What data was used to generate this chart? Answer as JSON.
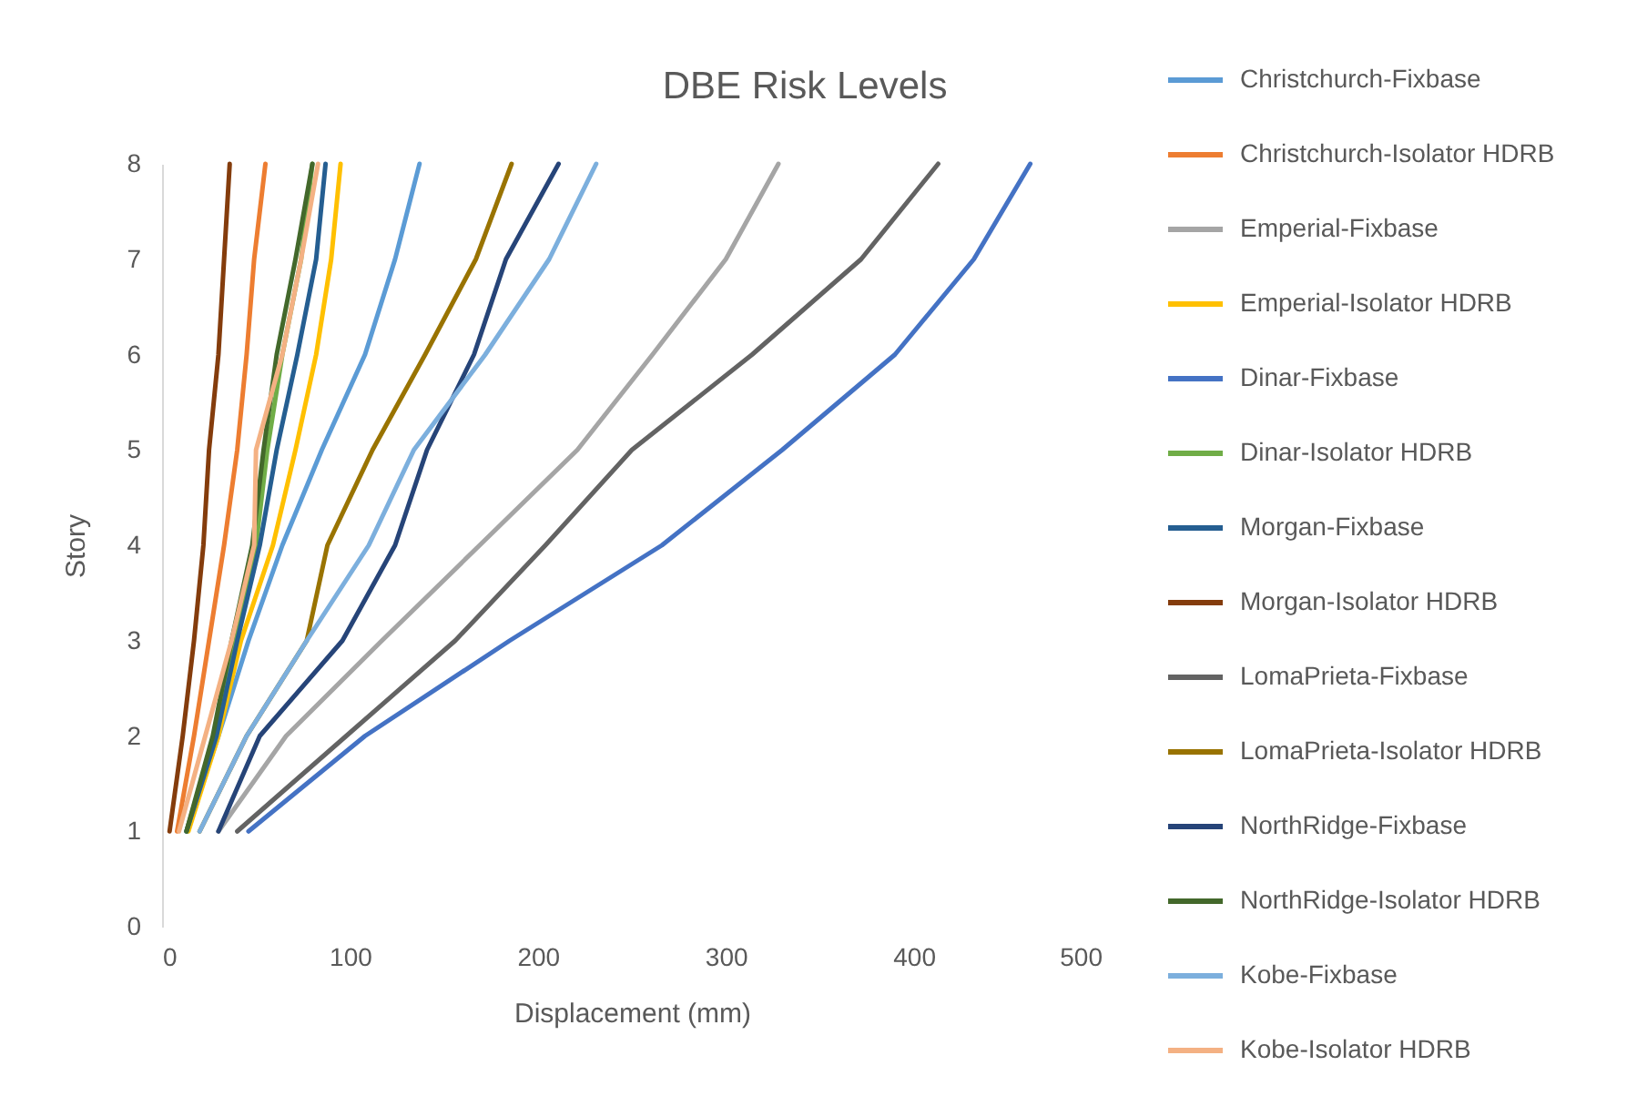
{
  "chart_data": {
    "type": "line",
    "title": "DBE Risk Levels",
    "xlabel": "Displacement (mm)",
    "ylabel": "Story",
    "xlim": [
      0,
      500
    ],
    "xticks": [
      0,
      100,
      200,
      300,
      400,
      500
    ],
    "ylim": [
      0,
      8
    ],
    "yticks": [
      0,
      1,
      2,
      3,
      4,
      5,
      6,
      7,
      8
    ],
    "grid": false,
    "legend": "right",
    "series": [
      {
        "name": "Christchurch-Fixbase",
        "color": "#5b9bd5",
        "x": [
          13,
          30,
          46,
          64,
          85,
          108,
          124,
          137
        ],
        "values": [
          1,
          2,
          3,
          4,
          5,
          6,
          7,
          8
        ]
      },
      {
        "name": "Christchurch-Isolator HDRB",
        "color": "#ed7d31",
        "x": [
          8,
          17,
          25,
          33,
          40,
          45,
          49,
          55
        ],
        "values": [
          1,
          2,
          3,
          4,
          5,
          6,
          7,
          8
        ]
      },
      {
        "name": "Emperial-Fixbase",
        "color": "#a5a5a5",
        "x": [
          30,
          66,
          117,
          169,
          221,
          261,
          300,
          328
        ],
        "values": [
          1,
          2,
          3,
          4,
          5,
          6,
          7,
          8
        ]
      },
      {
        "name": "Emperial-Isolator HDRB",
        "color": "#ffc000",
        "x": [
          14,
          30,
          42,
          59,
          71,
          82,
          90,
          95
        ],
        "values": [
          1,
          2,
          3,
          4,
          5,
          6,
          7,
          8
        ]
      },
      {
        "name": "Dinar-Fixbase",
        "color": "#4472c4",
        "x": [
          46,
          108,
          185,
          266,
          330,
          390,
          432,
          462
        ],
        "values": [
          1,
          2,
          3,
          4,
          5,
          6,
          7,
          8
        ]
      },
      {
        "name": "Dinar-Isolator HDRB",
        "color": "#70ad47",
        "x": [
          13,
          28,
          39,
          50,
          56,
          64,
          74,
          80
        ],
        "values": [
          1,
          2,
          3,
          4,
          5,
          6,
          7,
          8
        ]
      },
      {
        "name": "Morgan-Fixbase",
        "color": "#255e91",
        "x": [
          13,
          29,
          40,
          52,
          61,
          72,
          82,
          87
        ],
        "values": [
          1,
          2,
          3,
          4,
          5,
          6,
          7,
          8
        ]
      },
      {
        "name": "Morgan-Isolator HDRB",
        "color": "#843c0c",
        "x": [
          4,
          11,
          17,
          22,
          25,
          30,
          33,
          36
        ],
        "values": [
          1,
          2,
          3,
          4,
          5,
          6,
          7,
          8
        ]
      },
      {
        "name": "LomaPrieta-Fixbase",
        "color": "#636363",
        "x": [
          40,
          98,
          156,
          204,
          250,
          314,
          372,
          413
        ],
        "values": [
          1,
          2,
          3,
          4,
          5,
          6,
          7,
          8
        ]
      },
      {
        "name": "LomaPrieta-Isolator HDRB",
        "color": "#997300",
        "x": [
          20,
          45,
          77,
          88,
          112,
          140,
          167,
          186
        ],
        "values": [
          1,
          2,
          3,
          4,
          5,
          6,
          7,
          8
        ]
      },
      {
        "name": "NorthRidge-Fixbase",
        "color": "#264478",
        "x": [
          30,
          52,
          96,
          124,
          141,
          166,
          183,
          211
        ],
        "values": [
          1,
          2,
          3,
          4,
          5,
          6,
          7,
          8
        ]
      },
      {
        "name": "NorthRidge-Isolator HDRB",
        "color": "#43682b",
        "x": [
          13,
          27,
          37,
          48,
          54,
          61,
          71,
          80
        ],
        "values": [
          1,
          2,
          3,
          4,
          5,
          6,
          7,
          8
        ]
      },
      {
        "name": "Kobe-Fixbase",
        "color": "#7cafdd",
        "x": [
          20,
          45,
          77,
          110,
          134,
          172,
          206,
          231
        ],
        "values": [
          1,
          2,
          3,
          4,
          5,
          6,
          7,
          8
        ]
      },
      {
        "name": "Kobe-Isolator HDRB",
        "color": "#f4b183",
        "x": [
          9,
          23,
          37,
          49,
          50,
          64,
          74,
          83
        ],
        "values": [
          1,
          2,
          3,
          4,
          5,
          6,
          7,
          8
        ]
      }
    ]
  }
}
